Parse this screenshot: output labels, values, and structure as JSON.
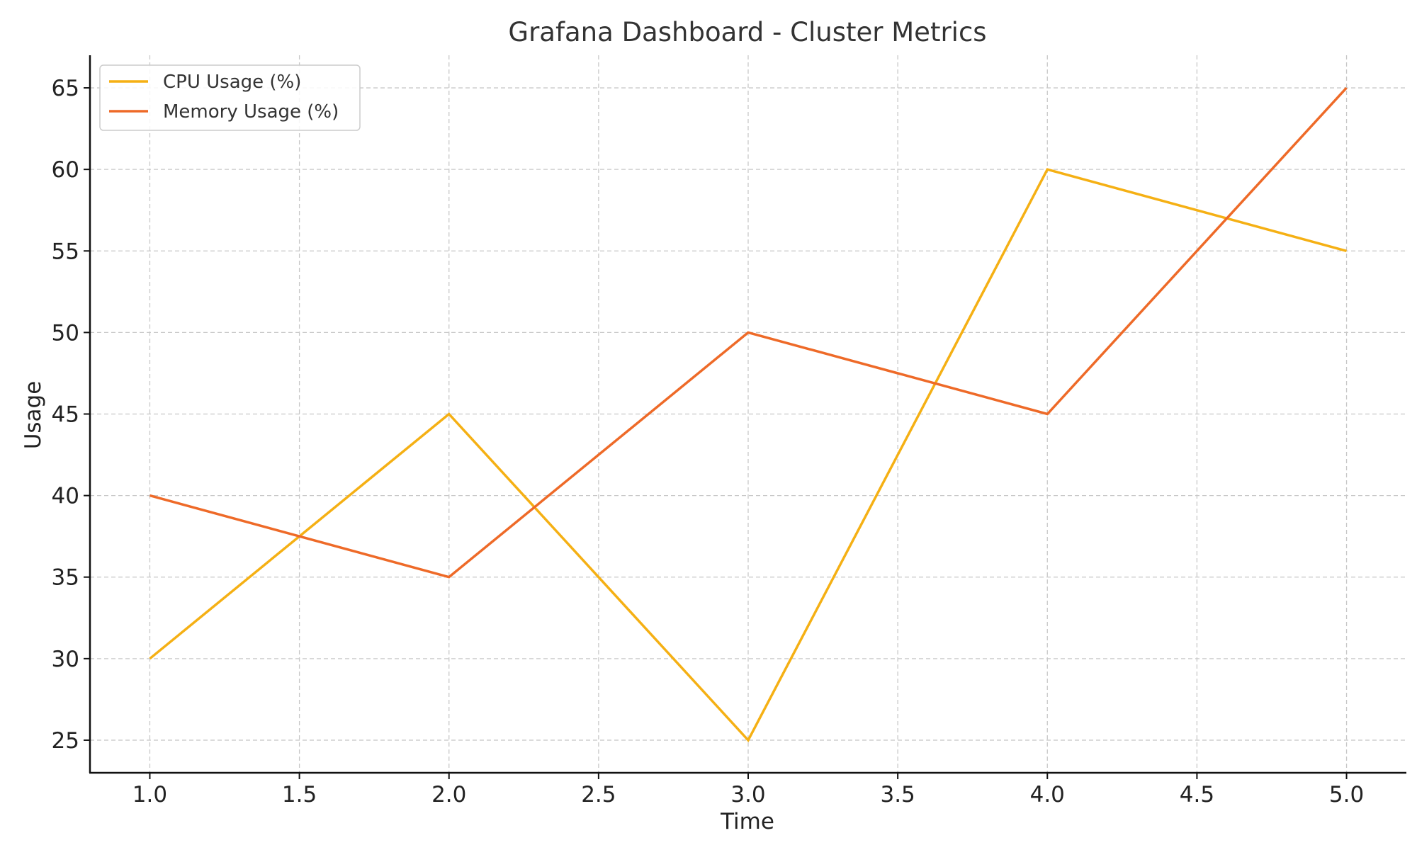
{
  "chart_data": {
    "type": "line",
    "title": "Grafana Dashboard - Cluster Metrics",
    "xlabel": "Time",
    "ylabel": "Usage",
    "x": [
      1,
      2,
      3,
      4,
      5
    ],
    "xlim": [
      0.8,
      5.2
    ],
    "ylim": [
      23,
      67
    ],
    "xticks": [
      1.0,
      1.5,
      2.0,
      2.5,
      3.0,
      3.5,
      4.0,
      4.5,
      5.0
    ],
    "xtick_labels": [
      "1.0",
      "1.5",
      "2.0",
      "2.5",
      "3.0",
      "3.5",
      "4.0",
      "4.5",
      "5.0"
    ],
    "yticks": [
      25,
      30,
      35,
      40,
      45,
      50,
      55,
      60,
      65
    ],
    "ytick_labels": [
      "25",
      "30",
      "35",
      "40",
      "45",
      "50",
      "55",
      "60",
      "65"
    ],
    "grid": true,
    "legend_position": "top-left",
    "series": [
      {
        "name": "CPU Usage (%)",
        "color": "#f5b014",
        "values": [
          30,
          45,
          25,
          60,
          55
        ]
      },
      {
        "name": "Memory Usage (%)",
        "color": "#ee6a28",
        "values": [
          40,
          35,
          50,
          45,
          65
        ]
      }
    ]
  }
}
